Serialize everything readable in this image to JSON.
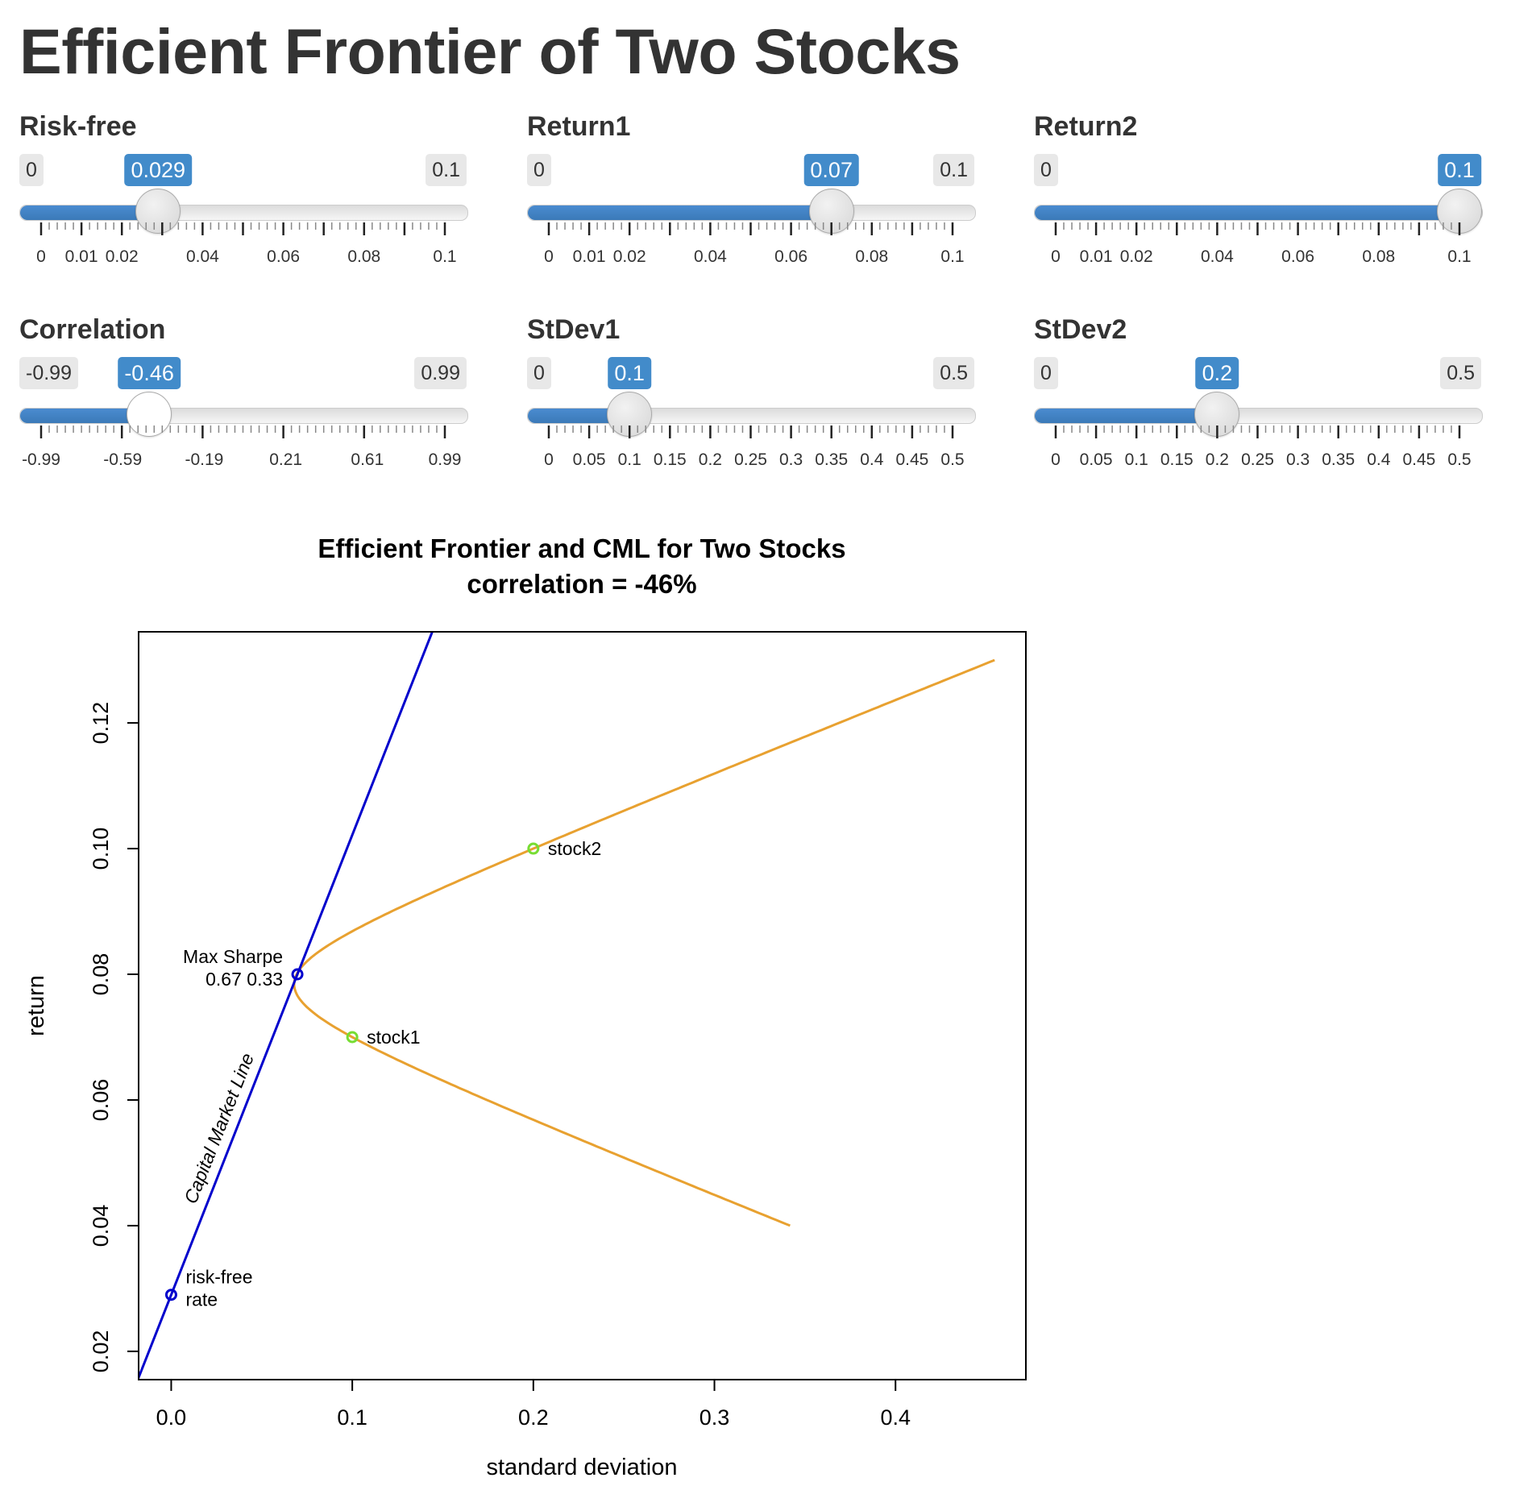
{
  "page": {
    "title": "Efficient Frontier of Two Stocks"
  },
  "sliders": [
    {
      "id": "risk-free",
      "label": "Risk-free",
      "min_label": "0",
      "max_label": "0.1",
      "value_label": "0.029",
      "min": 0,
      "max": 0.1,
      "value": 0.029,
      "ticks": [
        "0",
        "0.01",
        "0.02",
        "0.04",
        "0.06",
        "0.08",
        "0.1"
      ],
      "tick_values": [
        0,
        0.01,
        0.02,
        0.04,
        0.06,
        0.08,
        0.1
      ],
      "minor_count": 50,
      "major_every": 5,
      "handle_style": "grey"
    },
    {
      "id": "return1",
      "label": "Return1",
      "min_label": "0",
      "max_label": "0.1",
      "value_label": "0.07",
      "min": 0,
      "max": 0.1,
      "value": 0.07,
      "ticks": [
        "0",
        "0.01",
        "0.02",
        "0.04",
        "0.06",
        "0.08",
        "0.1"
      ],
      "tick_values": [
        0,
        0.01,
        0.02,
        0.04,
        0.06,
        0.08,
        0.1
      ],
      "minor_count": 50,
      "major_every": 5,
      "handle_style": "grey"
    },
    {
      "id": "return2",
      "label": "Return2",
      "min_label": "0",
      "max_label": "0.1",
      "value_label": "0.1",
      "min": 0,
      "max": 0.1,
      "value": 0.1,
      "ticks": [
        "0",
        "0.01",
        "0.02",
        "0.04",
        "0.06",
        "0.08",
        "0.1"
      ],
      "tick_values": [
        0,
        0.01,
        0.02,
        0.04,
        0.06,
        0.08,
        0.1
      ],
      "minor_count": 50,
      "major_every": 5,
      "handle_style": "grey"
    },
    {
      "id": "correlation",
      "label": "Correlation",
      "min_label": "-0.99",
      "max_label": "0.99",
      "value_label": "-0.46",
      "min": -0.99,
      "max": 0.99,
      "value": -0.46,
      "ticks": [
        "-0.99",
        "-0.59",
        "-0.19",
        "0.21",
        "0.61",
        "0.99"
      ],
      "tick_values": [
        -0.99,
        -0.59,
        -0.19,
        0.21,
        0.61,
        0.99
      ],
      "minor_count": 50,
      "major_every": 10,
      "handle_style": "white"
    },
    {
      "id": "stdev1",
      "label": "StDev1",
      "min_label": "0",
      "max_label": "0.5",
      "value_label": "0.1",
      "min": 0,
      "max": 0.5,
      "value": 0.1,
      "ticks": [
        "0",
        "0.05",
        "0.1",
        "0.15",
        "0.2",
        "0.25",
        "0.3",
        "0.35",
        "0.4",
        "0.45",
        "0.5"
      ],
      "tick_values": [
        0,
        0.05,
        0.1,
        0.15,
        0.2,
        0.25,
        0.3,
        0.35,
        0.4,
        0.45,
        0.5
      ],
      "minor_count": 50,
      "major_every": 5,
      "handle_style": "grey"
    },
    {
      "id": "stdev2",
      "label": "StDev2",
      "min_label": "0",
      "max_label": "0.5",
      "value_label": "0.2",
      "min": 0,
      "max": 0.5,
      "value": 0.2,
      "ticks": [
        "0",
        "0.05",
        "0.1",
        "0.15",
        "0.2",
        "0.25",
        "0.3",
        "0.35",
        "0.4",
        "0.45",
        "0.5"
      ],
      "tick_values": [
        0,
        0.05,
        0.1,
        0.15,
        0.2,
        0.25,
        0.3,
        0.35,
        0.4,
        0.45,
        0.5
      ],
      "minor_count": 50,
      "major_every": 5,
      "handle_style": "grey"
    }
  ],
  "colors": {
    "accent": "#428bca",
    "frontier": "#e8a130",
    "cml": "#0000cc",
    "stock_points": "#77dd33"
  },
  "chart_data": {
    "type": "line",
    "title": "Efficient Frontier and CML for Two Stocks",
    "subtitle": "correlation = -46%",
    "xlabel": "standard deviation",
    "ylabel": "return",
    "xlim": [
      -0.018,
      0.472
    ],
    "ylim": [
      0.0155,
      0.1345
    ],
    "xticks": [
      0.0,
      0.1,
      0.2,
      0.3,
      0.4
    ],
    "xtick_labels": [
      "0.0",
      "0.1",
      "0.2",
      "0.3",
      "0.4"
    ],
    "yticks": [
      0.02,
      0.04,
      0.06,
      0.08,
      0.1,
      0.12
    ],
    "ytick_labels": [
      "0.02",
      "0.04",
      "0.06",
      "0.08",
      "0.10",
      "0.12"
    ],
    "grid": false,
    "legend": "none",
    "inputs": {
      "risk_free": 0.029,
      "return1": 0.07,
      "return2": 0.1,
      "stdev1": 0.1,
      "stdev2": 0.2,
      "correlation": -0.46
    },
    "frontier_weight_range": [
      -1,
      2
    ],
    "points": [
      {
        "name": "stock1",
        "label": "stock1",
        "x": 0.1,
        "y": 0.07
      },
      {
        "name": "stock2",
        "label": "stock2",
        "x": 0.2,
        "y": 0.1
      },
      {
        "name": "max-sharpe",
        "label_line1": "Max Sharpe",
        "label_line2": "0.67 0.33",
        "x": 0.0697,
        "y": 0.08
      },
      {
        "name": "risk-free",
        "label_line1": "risk-free",
        "label_line2": "rate",
        "x": 0.0,
        "y": 0.029
      }
    ],
    "cml_label": "Capital Market Line"
  }
}
